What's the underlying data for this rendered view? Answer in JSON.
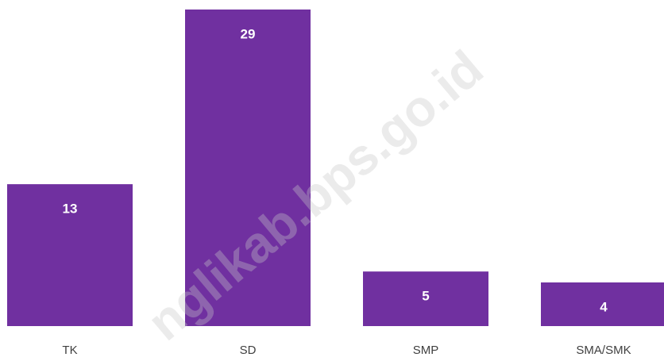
{
  "chart_data": {
    "type": "bar",
    "categories": [
      "TK",
      "SD",
      "SMP",
      "SMA/SMK"
    ],
    "values": [
      13,
      29,
      5,
      4
    ],
    "color": "#7030a0"
  },
  "watermark": "nglikab.bps.go.id"
}
